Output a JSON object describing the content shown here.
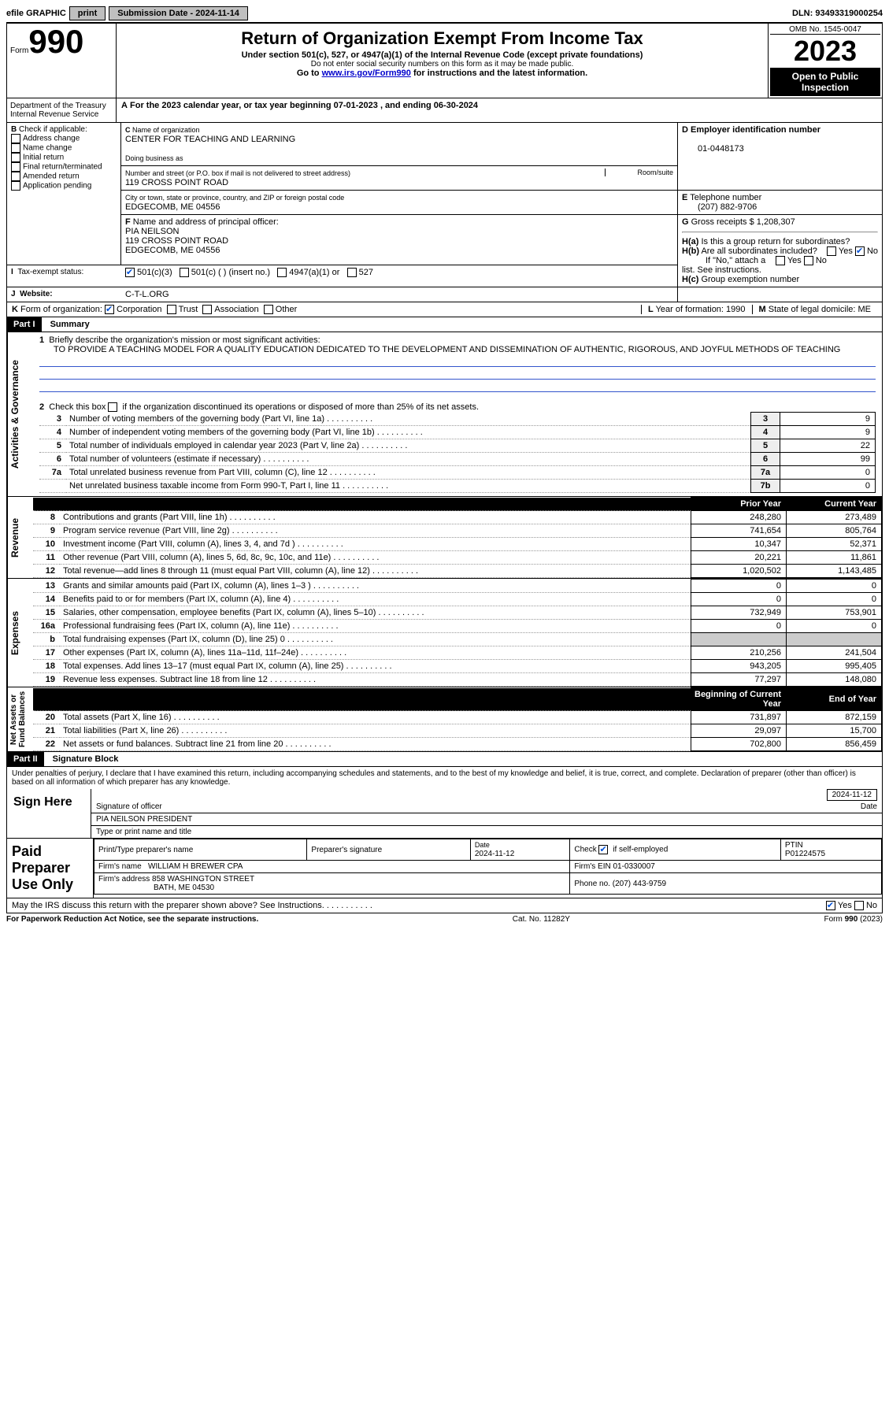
{
  "topbar": {
    "efile": "efile GRAPHIC",
    "print": "print",
    "sub_label": "Submission Date - 2024-11-14",
    "dln": "DLN: 93493319000254"
  },
  "header": {
    "form": "Form",
    "num": "990",
    "title": "Return of Organization Exempt From Income Tax",
    "sub": "Under section 501(c), 527, or 4947(a)(1) of the Internal Revenue Code (except private foundations)",
    "sub2": "Do not enter social security numbers on this form as it may be made public.",
    "sub3": "Go to ",
    "link": "www.irs.gov/Form990",
    "sub3b": " for instructions and the latest information.",
    "omb": "OMB No. 1545-0047",
    "year": "2023",
    "inspect": "Open to Public Inspection",
    "dept": "Department of the Treasury\nInternal Revenue Service"
  },
  "A": {
    "txt": "For the 2023 calendar year, or tax year beginning 07-01-2023   , and ending 06-30-2024"
  },
  "B": {
    "label": "Check if applicable:",
    "items": [
      "Address change",
      "Name change",
      "Initial return",
      "Final return/terminated",
      "Amended return",
      "Application pending"
    ]
  },
  "C": {
    "name_lbl": "Name of organization",
    "name": "CENTER FOR TEACHING AND LEARNING",
    "dba_lbl": "Doing business as",
    "addr_lbl": "Number and street (or P.O. box if mail is not delivered to street address)",
    "addr": "119 CROSS POINT ROAD",
    "room_lbl": "Room/suite",
    "city_lbl": "City or town, state or province, country, and ZIP or foreign postal code",
    "city": "EDGECOMB, ME  04556"
  },
  "D": {
    "lbl": "Employer identification number",
    "val": "01-0448173"
  },
  "E": {
    "lbl": "Telephone number",
    "val": "(207) 882-9706"
  },
  "G": {
    "lbl": "Gross receipts $",
    "val": "1,208,307"
  },
  "F": {
    "lbl": "Name and address of principal officer:",
    "name": "PIA NEILSON",
    "addr": "119 CROSS POINT ROAD",
    "city": "EDGECOMB, ME  04556"
  },
  "H": {
    "a": "Is this a group return for subordinates?",
    "b": "Are all subordinates included?",
    "bnote": "If \"No,\" attach a list. See instructions.",
    "c": "Group exemption number"
  },
  "I": {
    "lbl": "Tax-exempt status:",
    "opts": [
      "501(c)(3)",
      "501(c) (  ) (insert no.)",
      "4947(a)(1) or",
      "527"
    ]
  },
  "J": {
    "lbl": "Website:",
    "val": "C-T-L.ORG"
  },
  "K": {
    "lbl": "Form of organization:",
    "opts": [
      "Corporation",
      "Trust",
      "Association",
      "Other"
    ]
  },
  "L": {
    "lbl": "Year of formation:",
    "val": "1990"
  },
  "M": {
    "lbl": "State of legal domicile:",
    "val": "ME"
  },
  "part1": {
    "hdr": "Part I",
    "title": "Summary",
    "q1": "Briefly describe the organization's mission or most significant activities:",
    "mission": "TO PROVIDE A TEACHING MODEL FOR A QUALITY EDUCATION DEDICATED TO THE DEVELOPMENT AND DISSEMINATION OF AUTHENTIC, RIGOROUS, AND JOYFUL METHODS OF TEACHING",
    "q2": "Check this box      if the organization discontinued its operations or disposed of more than 25% of its net assets.",
    "lines_ag": [
      {
        "n": "3",
        "t": "Number of voting members of the governing body (Part VI, line 1a)",
        "b": "3",
        "v": "9"
      },
      {
        "n": "4",
        "t": "Number of independent voting members of the governing body (Part VI, line 1b)",
        "b": "4",
        "v": "9"
      },
      {
        "n": "5",
        "t": "Total number of individuals employed in calendar year 2023 (Part V, line 2a)",
        "b": "5",
        "v": "22"
      },
      {
        "n": "6",
        "t": "Total number of volunteers (estimate if necessary)",
        "b": "6",
        "v": "99"
      },
      {
        "n": "7a",
        "t": "Total unrelated business revenue from Part VIII, column (C), line 12",
        "b": "7a",
        "v": "0"
      },
      {
        "n": "",
        "t": "Net unrelated business taxable income from Form 990-T, Part I, line 11",
        "b": "7b",
        "v": "0"
      }
    ],
    "col_hdr": [
      "Prior Year",
      "Current Year"
    ],
    "rev": [
      {
        "n": "8",
        "t": "Contributions and grants (Part VIII, line 1h)",
        "p": "248,280",
        "c": "273,489"
      },
      {
        "n": "9",
        "t": "Program service revenue (Part VIII, line 2g)",
        "p": "741,654",
        "c": "805,764"
      },
      {
        "n": "10",
        "t": "Investment income (Part VIII, column (A), lines 3, 4, and 7d )",
        "p": "10,347",
        "c": "52,371"
      },
      {
        "n": "11",
        "t": "Other revenue (Part VIII, column (A), lines 5, 6d, 8c, 9c, 10c, and 11e)",
        "p": "20,221",
        "c": "11,861"
      },
      {
        "n": "12",
        "t": "Total revenue—add lines 8 through 11 (must equal Part VIII, column (A), line 12)",
        "p": "1,020,502",
        "c": "1,143,485"
      }
    ],
    "exp": [
      {
        "n": "13",
        "t": "Grants and similar amounts paid (Part IX, column (A), lines 1–3 )",
        "p": "0",
        "c": "0"
      },
      {
        "n": "14",
        "t": "Benefits paid to or for members (Part IX, column (A), line 4)",
        "p": "0",
        "c": "0"
      },
      {
        "n": "15",
        "t": "Salaries, other compensation, employee benefits (Part IX, column (A), lines 5–10)",
        "p": "732,949",
        "c": "753,901"
      },
      {
        "n": "16a",
        "t": "Professional fundraising fees (Part IX, column (A), line 11e)",
        "p": "0",
        "c": "0"
      },
      {
        "n": "b",
        "t": "Total fundraising expenses (Part IX, column (D), line 25) 0",
        "p": "",
        "c": ""
      },
      {
        "n": "17",
        "t": "Other expenses (Part IX, column (A), lines 11a–11d, 11f–24e)",
        "p": "210,256",
        "c": "241,504"
      },
      {
        "n": "18",
        "t": "Total expenses. Add lines 13–17 (must equal Part IX, column (A), line 25)",
        "p": "943,205",
        "c": "995,405"
      },
      {
        "n": "19",
        "t": "Revenue less expenses. Subtract line 18 from line 12",
        "p": "77,297",
        "c": "148,080"
      }
    ],
    "na_hdr": [
      "Beginning of Current Year",
      "End of Year"
    ],
    "na": [
      {
        "n": "20",
        "t": "Total assets (Part X, line 16)",
        "p": "731,897",
        "c": "872,159"
      },
      {
        "n": "21",
        "t": "Total liabilities (Part X, line 26)",
        "p": "29,097",
        "c": "15,700"
      },
      {
        "n": "22",
        "t": "Net assets or fund balances. Subtract line 21 from line 20",
        "p": "702,800",
        "c": "856,459"
      }
    ],
    "tabs": {
      "ag": "Activities & Governance",
      "rev": "Revenue",
      "exp": "Expenses",
      "na": "Net Assets or\nFund Balances"
    }
  },
  "part2": {
    "hdr": "Part II",
    "title": "Signature Block",
    "decl": "Under penalties of perjury, I declare that I have examined this return, including accompanying schedules and statements, and to the best of my knowledge and belief, it is true, correct, and complete. Declaration of preparer (other than officer) is based on all information of which preparer has any knowledge.",
    "sign": "Sign Here",
    "sig_officer": "Signature of officer",
    "date": "Date",
    "date_val": "2024-11-12",
    "officer_name": "PIA NEILSON  PRESIDENT",
    "type_name": "Type or print name and title",
    "paid": "Paid Preparer Use Only",
    "prep_name_lbl": "Print/Type preparer's name",
    "prep_sig_lbl": "Preparer's signature",
    "prep_date": "2024-11-12",
    "self": "Check        if self-employed",
    "ptin_lbl": "PTIN",
    "ptin": "P01224575",
    "firm_name_lbl": "Firm's name",
    "firm_name": "WILLIAM H BREWER CPA",
    "firm_ein_lbl": "Firm's EIN",
    "firm_ein": "01-0330007",
    "firm_addr_lbl": "Firm's address",
    "firm_addr": "858 WASHINGTON STREET",
    "firm_city": "BATH, ME  04530",
    "phone_lbl": "Phone no.",
    "phone": "(207) 443-9759",
    "discuss": "May the IRS discuss this return with the preparer shown above? See Instructions."
  },
  "footer": {
    "pra": "For Paperwork Reduction Act Notice, see the separate instructions.",
    "cat": "Cat. No. 11282Y",
    "form": "Form 990 (2023)"
  }
}
